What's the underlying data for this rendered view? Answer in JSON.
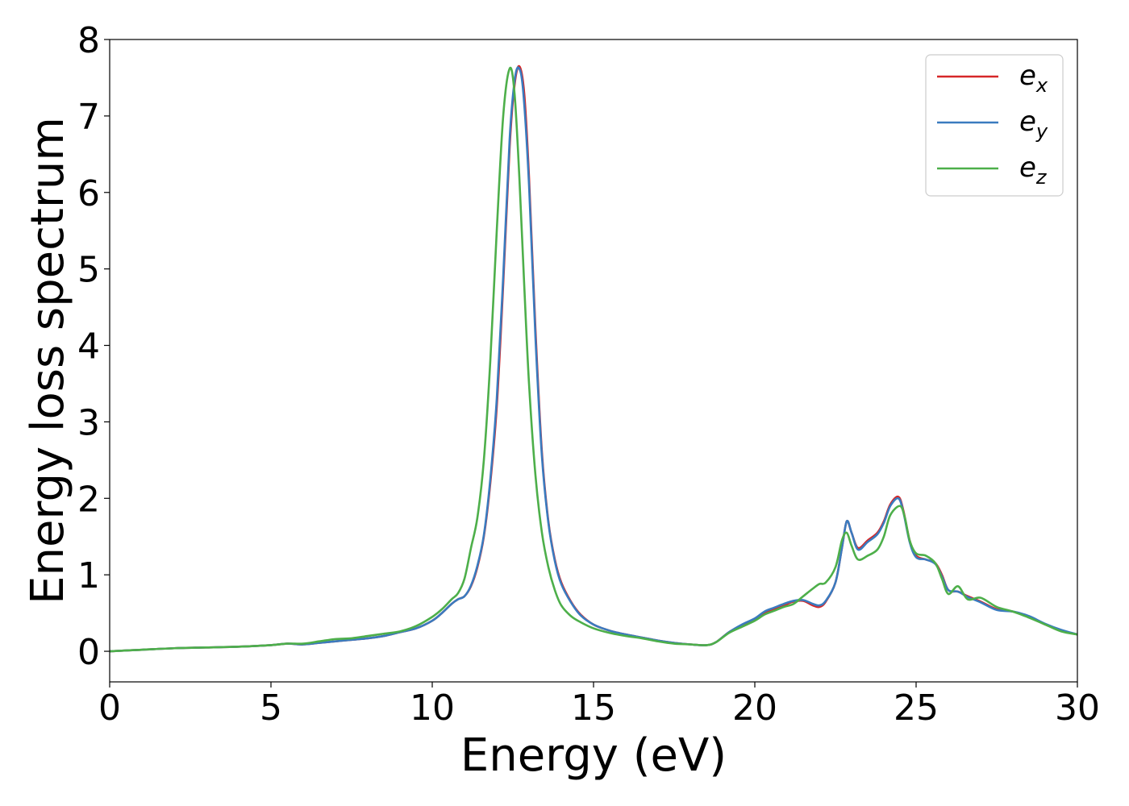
{
  "chart_data": {
    "type": "line",
    "title": "",
    "xlabel": "Energy (eV)",
    "ylabel": "Energy loss spectrum",
    "xlim": [
      0,
      30
    ],
    "ylim": [
      -0.4,
      8
    ],
    "xticks": [
      0,
      5,
      10,
      15,
      20,
      25,
      30
    ],
    "yticks": [
      0,
      1,
      2,
      3,
      4,
      5,
      6,
      7,
      8
    ],
    "grid": false,
    "legend": "top-right",
    "series": [
      {
        "name": "e_x",
        "label_main": "e",
        "label_sub": "x",
        "color": "#d62728",
        "points": [
          [
            0,
            0.0
          ],
          [
            1,
            0.02
          ],
          [
            2,
            0.04
          ],
          [
            3,
            0.05
          ],
          [
            4,
            0.06
          ],
          [
            5,
            0.08
          ],
          [
            5.5,
            0.1
          ],
          [
            6,
            0.09
          ],
          [
            6.5,
            0.11
          ],
          [
            7,
            0.13
          ],
          [
            7.5,
            0.15
          ],
          [
            8,
            0.17
          ],
          [
            8.5,
            0.2
          ],
          [
            9,
            0.25
          ],
          [
            9.5,
            0.3
          ],
          [
            10,
            0.4
          ],
          [
            10.3,
            0.5
          ],
          [
            10.6,
            0.62
          ],
          [
            10.8,
            0.68
          ],
          [
            11,
            0.72
          ],
          [
            11.2,
            0.85
          ],
          [
            11.4,
            1.1
          ],
          [
            11.6,
            1.5
          ],
          [
            11.8,
            2.2
          ],
          [
            12,
            3.2
          ],
          [
            12.2,
            4.8
          ],
          [
            12.4,
            6.6
          ],
          [
            12.55,
            7.4
          ],
          [
            12.7,
            7.65
          ],
          [
            12.85,
            7.3
          ],
          [
            13,
            6.2
          ],
          [
            13.2,
            4.2
          ],
          [
            13.4,
            2.6
          ],
          [
            13.6,
            1.7
          ],
          [
            13.8,
            1.2
          ],
          [
            14,
            0.9
          ],
          [
            14.3,
            0.65
          ],
          [
            14.6,
            0.48
          ],
          [
            15,
            0.35
          ],
          [
            15.5,
            0.27
          ],
          [
            16,
            0.22
          ],
          [
            16.5,
            0.18
          ],
          [
            17,
            0.14
          ],
          [
            17.5,
            0.11
          ],
          [
            18,
            0.09
          ],
          [
            18.5,
            0.08
          ],
          [
            18.8,
            0.12
          ],
          [
            19.2,
            0.25
          ],
          [
            19.6,
            0.34
          ],
          [
            20,
            0.42
          ],
          [
            20.3,
            0.5
          ],
          [
            20.6,
            0.55
          ],
          [
            20.9,
            0.6
          ],
          [
            21.2,
            0.65
          ],
          [
            21.5,
            0.66
          ],
          [
            21.8,
            0.6
          ],
          [
            22,
            0.58
          ],
          [
            22.2,
            0.65
          ],
          [
            22.5,
            0.9
          ],
          [
            22.7,
            1.35
          ],
          [
            22.85,
            1.7
          ],
          [
            23,
            1.55
          ],
          [
            23.2,
            1.35
          ],
          [
            23.5,
            1.45
          ],
          [
            23.8,
            1.55
          ],
          [
            24,
            1.7
          ],
          [
            24.2,
            1.92
          ],
          [
            24.45,
            2.02
          ],
          [
            24.6,
            1.85
          ],
          [
            24.8,
            1.45
          ],
          [
            25,
            1.25
          ],
          [
            25.3,
            1.2
          ],
          [
            25.6,
            1.15
          ],
          [
            25.8,
            1.0
          ],
          [
            26,
            0.8
          ],
          [
            26.3,
            0.78
          ],
          [
            26.6,
            0.72
          ],
          [
            27,
            0.65
          ],
          [
            27.5,
            0.55
          ],
          [
            28,
            0.52
          ],
          [
            28.5,
            0.45
          ],
          [
            29,
            0.35
          ],
          [
            29.5,
            0.27
          ],
          [
            30,
            0.22
          ]
        ]
      },
      {
        "name": "e_y",
        "label_main": "e",
        "label_sub": "y",
        "color": "#3a7bbf",
        "points": [
          [
            0,
            0.0
          ],
          [
            1,
            0.02
          ],
          [
            2,
            0.04
          ],
          [
            3,
            0.05
          ],
          [
            4,
            0.06
          ],
          [
            5,
            0.08
          ],
          [
            5.5,
            0.1
          ],
          [
            6,
            0.09
          ],
          [
            6.5,
            0.11
          ],
          [
            7,
            0.13
          ],
          [
            7.5,
            0.15
          ],
          [
            8,
            0.17
          ],
          [
            8.5,
            0.2
          ],
          [
            9,
            0.25
          ],
          [
            9.5,
            0.3
          ],
          [
            10,
            0.4
          ],
          [
            10.3,
            0.5
          ],
          [
            10.6,
            0.62
          ],
          [
            10.8,
            0.68
          ],
          [
            11,
            0.72
          ],
          [
            11.2,
            0.86
          ],
          [
            11.4,
            1.12
          ],
          [
            11.6,
            1.52
          ],
          [
            11.8,
            2.25
          ],
          [
            12,
            3.3
          ],
          [
            12.2,
            4.9
          ],
          [
            12.4,
            6.7
          ],
          [
            12.55,
            7.45
          ],
          [
            12.68,
            7.63
          ],
          [
            12.82,
            7.32
          ],
          [
            13,
            6.1
          ],
          [
            13.2,
            4.1
          ],
          [
            13.4,
            2.55
          ],
          [
            13.6,
            1.68
          ],
          [
            13.8,
            1.18
          ],
          [
            14,
            0.88
          ],
          [
            14.3,
            0.64
          ],
          [
            14.6,
            0.47
          ],
          [
            15,
            0.35
          ],
          [
            15.5,
            0.27
          ],
          [
            16,
            0.22
          ],
          [
            16.5,
            0.18
          ],
          [
            17,
            0.14
          ],
          [
            17.5,
            0.11
          ],
          [
            18,
            0.09
          ],
          [
            18.5,
            0.08
          ],
          [
            18.8,
            0.12
          ],
          [
            19.2,
            0.25
          ],
          [
            19.6,
            0.35
          ],
          [
            20,
            0.43
          ],
          [
            20.3,
            0.52
          ],
          [
            20.6,
            0.57
          ],
          [
            20.9,
            0.62
          ],
          [
            21.2,
            0.66
          ],
          [
            21.5,
            0.67
          ],
          [
            21.8,
            0.62
          ],
          [
            22,
            0.6
          ],
          [
            22.2,
            0.66
          ],
          [
            22.5,
            0.9
          ],
          [
            22.7,
            1.35
          ],
          [
            22.85,
            1.7
          ],
          [
            23,
            1.55
          ],
          [
            23.2,
            1.33
          ],
          [
            23.5,
            1.43
          ],
          [
            23.8,
            1.53
          ],
          [
            24,
            1.68
          ],
          [
            24.2,
            1.9
          ],
          [
            24.45,
            2.0
          ],
          [
            24.6,
            1.83
          ],
          [
            24.8,
            1.43
          ],
          [
            25,
            1.23
          ],
          [
            25.3,
            1.2
          ],
          [
            25.6,
            1.14
          ],
          [
            25.8,
            0.98
          ],
          [
            26,
            0.8
          ],
          [
            26.3,
            0.78
          ],
          [
            26.6,
            0.71
          ],
          [
            27,
            0.64
          ],
          [
            27.5,
            0.54
          ],
          [
            28,
            0.52
          ],
          [
            28.5,
            0.46
          ],
          [
            29,
            0.36
          ],
          [
            29.5,
            0.28
          ],
          [
            30,
            0.22
          ]
        ]
      },
      {
        "name": "e_z",
        "label_main": "e",
        "label_sub": "z",
        "color": "#4daf4a",
        "points": [
          [
            0,
            0.0
          ],
          [
            1,
            0.02
          ],
          [
            2,
            0.04
          ],
          [
            3,
            0.05
          ],
          [
            4,
            0.06
          ],
          [
            5,
            0.08
          ],
          [
            5.5,
            0.1
          ],
          [
            6,
            0.1
          ],
          [
            6.5,
            0.13
          ],
          [
            7,
            0.16
          ],
          [
            7.5,
            0.17
          ],
          [
            8,
            0.2
          ],
          [
            8.5,
            0.23
          ],
          [
            9,
            0.26
          ],
          [
            9.5,
            0.33
          ],
          [
            10,
            0.45
          ],
          [
            10.3,
            0.55
          ],
          [
            10.6,
            0.68
          ],
          [
            10.8,
            0.76
          ],
          [
            11,
            0.95
          ],
          [
            11.2,
            1.35
          ],
          [
            11.4,
            1.75
          ],
          [
            11.6,
            2.5
          ],
          [
            11.8,
            3.8
          ],
          [
            12,
            5.5
          ],
          [
            12.2,
            7.0
          ],
          [
            12.4,
            7.62
          ],
          [
            12.55,
            7.3
          ],
          [
            12.7,
            6.2
          ],
          [
            12.85,
            4.8
          ],
          [
            13,
            3.5
          ],
          [
            13.2,
            2.3
          ],
          [
            13.4,
            1.55
          ],
          [
            13.6,
            1.1
          ],
          [
            13.8,
            0.8
          ],
          [
            14,
            0.6
          ],
          [
            14.3,
            0.46
          ],
          [
            14.6,
            0.38
          ],
          [
            15,
            0.3
          ],
          [
            15.5,
            0.24
          ],
          [
            16,
            0.2
          ],
          [
            16.5,
            0.17
          ],
          [
            17,
            0.13
          ],
          [
            17.5,
            0.1
          ],
          [
            18,
            0.09
          ],
          [
            18.5,
            0.08
          ],
          [
            18.8,
            0.12
          ],
          [
            19.2,
            0.24
          ],
          [
            19.6,
            0.32
          ],
          [
            20,
            0.4
          ],
          [
            20.3,
            0.48
          ],
          [
            20.6,
            0.53
          ],
          [
            20.9,
            0.58
          ],
          [
            21.2,
            0.62
          ],
          [
            21.5,
            0.72
          ],
          [
            21.8,
            0.82
          ],
          [
            22,
            0.88
          ],
          [
            22.2,
            0.9
          ],
          [
            22.5,
            1.1
          ],
          [
            22.7,
            1.45
          ],
          [
            22.85,
            1.55
          ],
          [
            23,
            1.38
          ],
          [
            23.2,
            1.2
          ],
          [
            23.5,
            1.25
          ],
          [
            23.8,
            1.33
          ],
          [
            24,
            1.5
          ],
          [
            24.2,
            1.78
          ],
          [
            24.5,
            1.9
          ],
          [
            24.65,
            1.75
          ],
          [
            24.8,
            1.45
          ],
          [
            25,
            1.28
          ],
          [
            25.3,
            1.25
          ],
          [
            25.6,
            1.15
          ],
          [
            25.8,
            0.95
          ],
          [
            26,
            0.75
          ],
          [
            26.3,
            0.85
          ],
          [
            26.6,
            0.68
          ],
          [
            27,
            0.7
          ],
          [
            27.5,
            0.58
          ],
          [
            28,
            0.52
          ],
          [
            28.5,
            0.44
          ],
          [
            29,
            0.35
          ],
          [
            29.5,
            0.26
          ],
          [
            30,
            0.22
          ]
        ]
      }
    ]
  }
}
